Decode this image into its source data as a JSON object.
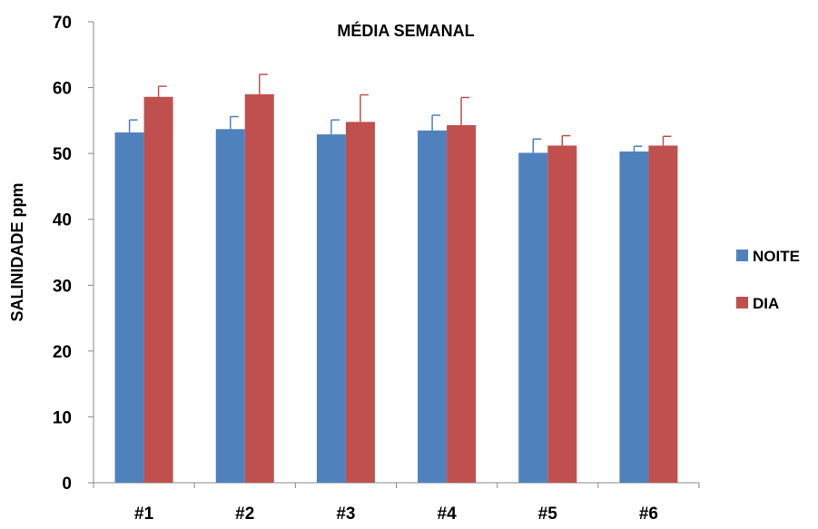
{
  "chart_data": {
    "type": "bar",
    "title": "MÉDIA SEMANAL",
    "ylabel": "SALINIDADE  ppm",
    "xlabel": "",
    "categories": [
      "#1",
      "#2",
      "#3",
      "#4",
      "#5",
      "#6"
    ],
    "ylim": [
      0,
      70
    ],
    "yticks": [
      0,
      10,
      20,
      30,
      40,
      50,
      60,
      70
    ],
    "grid": false,
    "legend_position": "right",
    "series": [
      {
        "name": "NOITE",
        "color": "#4F81BD",
        "values": [
          53.2,
          53.7,
          52.9,
          53.5,
          50.1,
          50.3
        ],
        "errors": [
          1.9,
          1.9,
          2.2,
          2.3,
          2.1,
          0.8
        ]
      },
      {
        "name": "DIA",
        "color": "#C0504D",
        "values": [
          58.6,
          59.0,
          54.8,
          54.3,
          51.2,
          51.2
        ],
        "errors": [
          1.6,
          3.0,
          4.1,
          4.2,
          1.5,
          1.4
        ]
      }
    ]
  }
}
